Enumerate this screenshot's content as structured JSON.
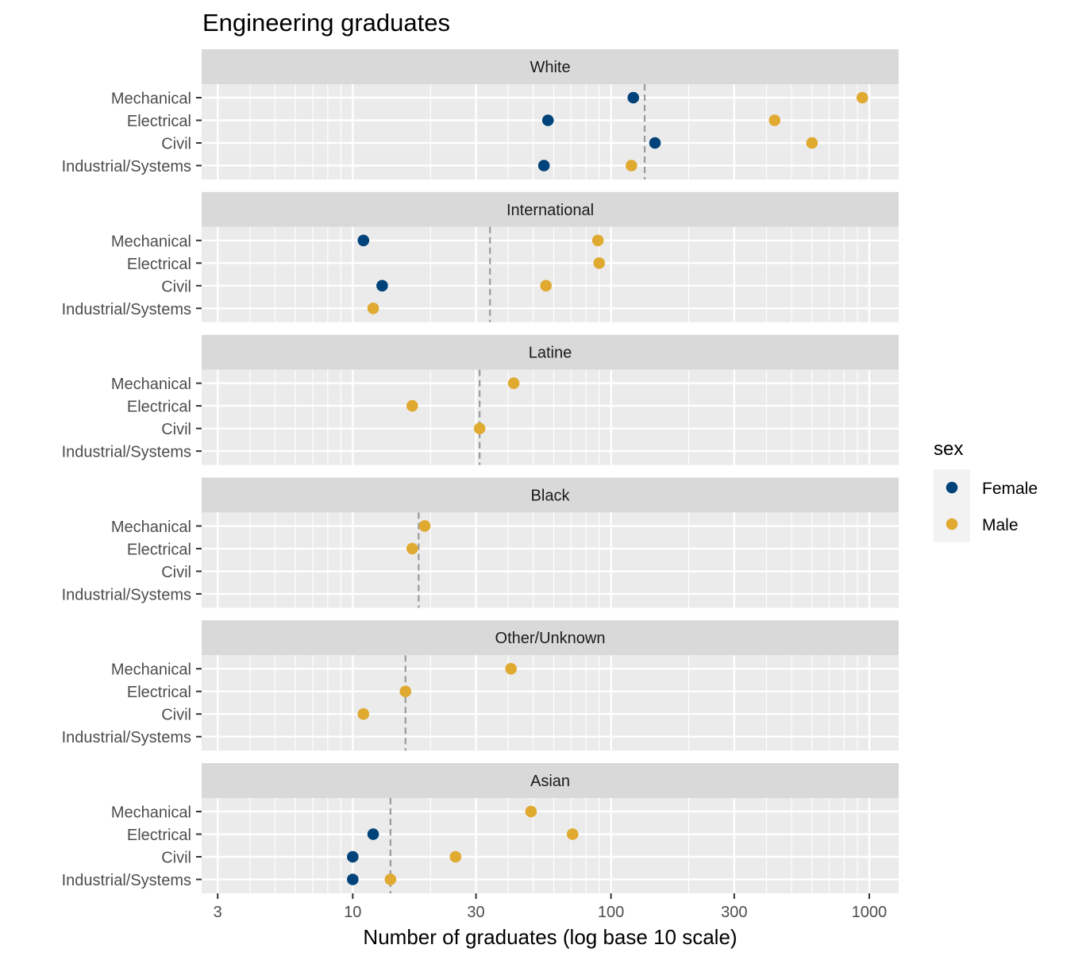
{
  "chart_data": {
    "type": "scatter",
    "title": "Engineering graduates",
    "xlabel": "Number of graduates (log base 10 scale)",
    "ylabel": "",
    "x_scale": "log10",
    "xlim": [
      2.6,
      1300
    ],
    "x_ticks": [
      3,
      10,
      30,
      100,
      300,
      1000
    ],
    "x_tick_labels": [
      "3",
      "10",
      "30",
      "100",
      "300",
      "1000"
    ],
    "categories": [
      "Mechanical",
      "Electrical",
      "Civil",
      "Industrial/Systems"
    ],
    "grid": true,
    "legend": {
      "title": "sex",
      "position": "right",
      "entries": [
        {
          "name": "Female",
          "color": "#00437A"
        },
        {
          "name": "Male",
          "color": "#E0A930"
        }
      ]
    },
    "reference_line_color": "#9a9a9a",
    "panel_background": "#EBEBEB",
    "strip_background": "#D9D9D9",
    "panels": [
      {
        "strip": "White",
        "reference_line": 135,
        "points": [
          {
            "program": "Mechanical",
            "sex": "Female",
            "x": 122
          },
          {
            "program": "Mechanical",
            "sex": "Male",
            "x": 940
          },
          {
            "program": "Electrical",
            "sex": "Female",
            "x": 57
          },
          {
            "program": "Electrical",
            "sex": "Male",
            "x": 430
          },
          {
            "program": "Civil",
            "sex": "Female",
            "x": 148
          },
          {
            "program": "Civil",
            "sex": "Male",
            "x": 600
          },
          {
            "program": "Industrial/Systems",
            "sex": "Female",
            "x": 55
          },
          {
            "program": "Industrial/Systems",
            "sex": "Male",
            "x": 120
          }
        ]
      },
      {
        "strip": "International",
        "reference_line": 34,
        "points": [
          {
            "program": "Mechanical",
            "sex": "Female",
            "x": 11
          },
          {
            "program": "Mechanical",
            "sex": "Male",
            "x": 89
          },
          {
            "program": "Electrical",
            "sex": "Male",
            "x": 90
          },
          {
            "program": "Civil",
            "sex": "Female",
            "x": 13
          },
          {
            "program": "Civil",
            "sex": "Male",
            "x": 56
          },
          {
            "program": "Industrial/Systems",
            "sex": "Male",
            "x": 12
          }
        ]
      },
      {
        "strip": "Latine",
        "reference_line": 31,
        "points": [
          {
            "program": "Mechanical",
            "sex": "Male",
            "x": 42
          },
          {
            "program": "Electrical",
            "sex": "Male",
            "x": 17
          },
          {
            "program": "Civil",
            "sex": "Male",
            "x": 31
          }
        ]
      },
      {
        "strip": "Black",
        "reference_line": 18,
        "points": [
          {
            "program": "Mechanical",
            "sex": "Male",
            "x": 19
          },
          {
            "program": "Electrical",
            "sex": "Male",
            "x": 17
          }
        ]
      },
      {
        "strip": "Other/Unknown",
        "reference_line": 16,
        "points": [
          {
            "program": "Mechanical",
            "sex": "Male",
            "x": 41
          },
          {
            "program": "Electrical",
            "sex": "Male",
            "x": 16
          },
          {
            "program": "Civil",
            "sex": "Male",
            "x": 11
          }
        ]
      },
      {
        "strip": "Asian",
        "reference_line": 14,
        "points": [
          {
            "program": "Mechanical",
            "sex": "Male",
            "x": 49
          },
          {
            "program": "Electrical",
            "sex": "Female",
            "x": 12
          },
          {
            "program": "Electrical",
            "sex": "Male",
            "x": 71
          },
          {
            "program": "Civil",
            "sex": "Female",
            "x": 10
          },
          {
            "program": "Civil",
            "sex": "Male",
            "x": 25
          },
          {
            "program": "Industrial/Systems",
            "sex": "Female",
            "x": 10
          },
          {
            "program": "Industrial/Systems",
            "sex": "Male",
            "x": 14
          }
        ]
      }
    ]
  }
}
